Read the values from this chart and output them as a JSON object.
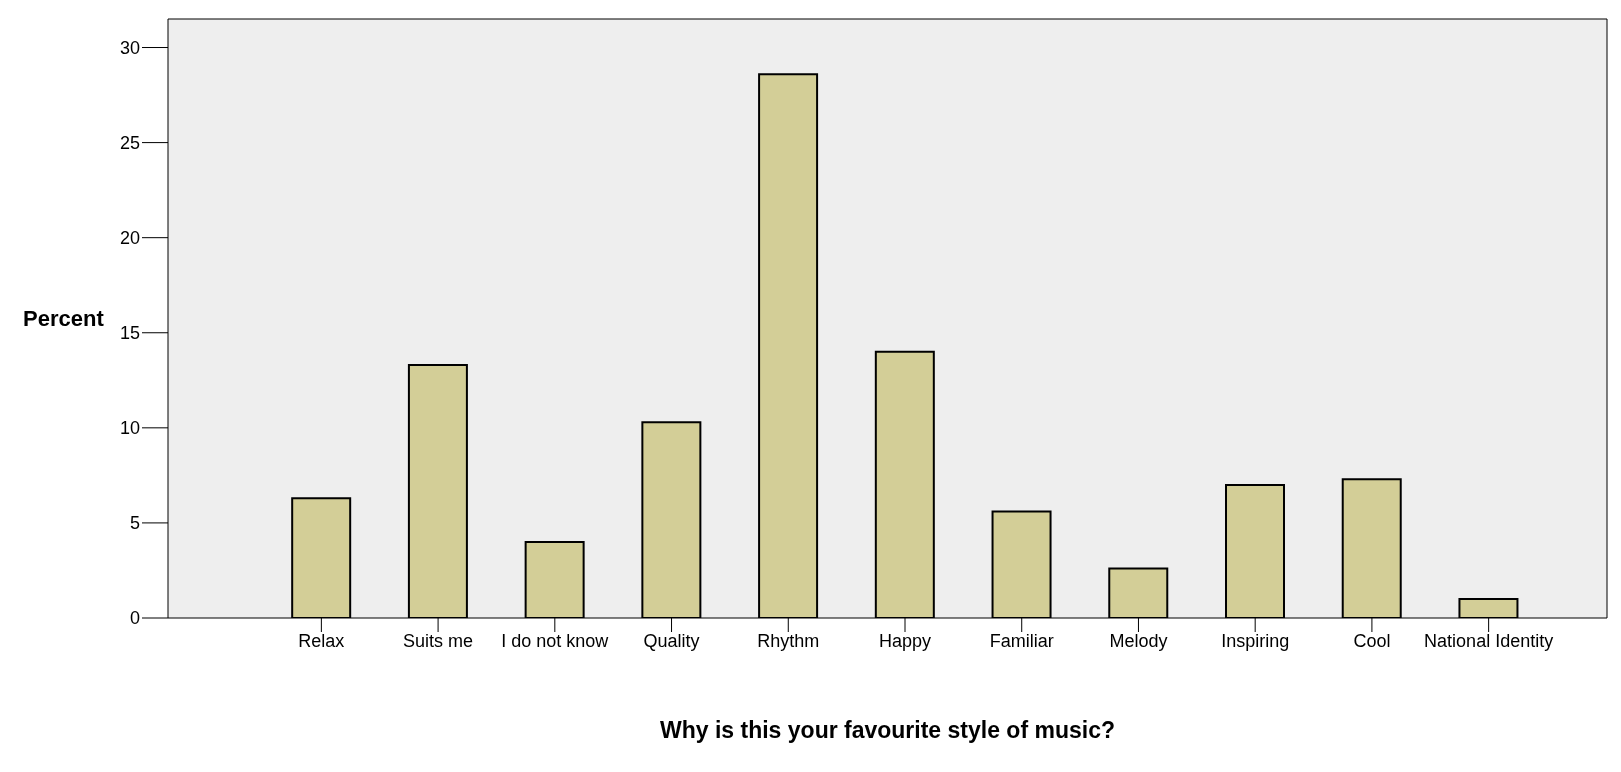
{
  "chart_data": {
    "type": "bar",
    "xlabel": "Why is this your favourite style of music?",
    "ylabel": "Percent",
    "categories": [
      "Relax",
      "Suits me",
      "I do not know",
      "Quality",
      "Rhythm",
      "Happy",
      "Familiar",
      "Melody",
      "Inspiring",
      "Cool",
      "National Identity"
    ],
    "values": [
      6.3,
      13.3,
      4.0,
      10.3,
      28.6,
      14.0,
      5.6,
      2.6,
      7.0,
      7.3,
      1.0
    ],
    "color": "#d3ce97",
    "ylim": [
      0,
      31.5
    ],
    "yticks": [
      0,
      5,
      10,
      15,
      20,
      25,
      30
    ],
    "grid": false,
    "legend": false
  }
}
